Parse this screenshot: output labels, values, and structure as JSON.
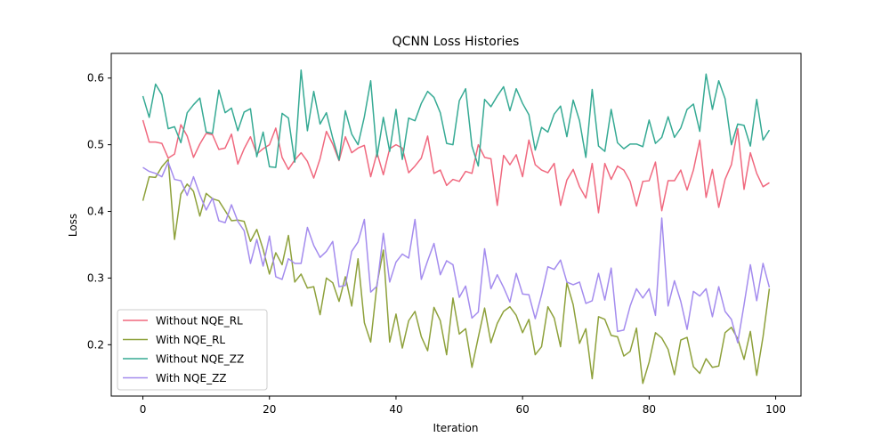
{
  "chart_data": {
    "type": "line",
    "title": "QCNN Loss Histories",
    "xlabel": "Iteration",
    "ylabel": "Loss",
    "xlim": [
      -5,
      104
    ],
    "ylim": [
      0.123,
      0.637
    ],
    "xticks": [
      0,
      20,
      40,
      60,
      80,
      100
    ],
    "yticks": [
      0.2,
      0.3,
      0.4,
      0.5,
      0.6
    ],
    "grid": false,
    "legend_position": "lower-left",
    "series": [
      {
        "name": "Without NQE_RL",
        "color": "#f0697f",
        "values": [
          0.537,
          0.504,
          0.504,
          0.502,
          0.48,
          0.486,
          0.53,
          0.513,
          0.481,
          0.501,
          0.517,
          0.515,
          0.493,
          0.495,
          0.516,
          0.471,
          0.494,
          0.512,
          0.486,
          0.494,
          0.5,
          0.525,
          0.481,
          0.463,
          0.477,
          0.488,
          0.475,
          0.45,
          0.479,
          0.52,
          0.501,
          0.476,
          0.512,
          0.488,
          0.495,
          0.499,
          0.452,
          0.488,
          0.455,
          0.494,
          0.5,
          0.495,
          0.458,
          0.468,
          0.48,
          0.513,
          0.457,
          0.462,
          0.439,
          0.448,
          0.445,
          0.46,
          0.457,
          0.5,
          0.481,
          0.479,
          0.409,
          0.484,
          0.47,
          0.485,
          0.452,
          0.507,
          0.47,
          0.462,
          0.458,
          0.472,
          0.409,
          0.447,
          0.463,
          0.437,
          0.42,
          0.472,
          0.398,
          0.472,
          0.448,
          0.468,
          0.462,
          0.445,
          0.408,
          0.445,
          0.446,
          0.474,
          0.401,
          0.446,
          0.446,
          0.462,
          0.432,
          0.462,
          0.507,
          0.421,
          0.463,
          0.406,
          0.448,
          0.47,
          0.524,
          0.433,
          0.488,
          0.457,
          0.437,
          0.443
        ]
      },
      {
        "name": "With NQE_RL",
        "color": "#8ea13b",
        "values": [
          0.416,
          0.452,
          0.451,
          0.467,
          0.478,
          0.358,
          0.426,
          0.441,
          0.43,
          0.393,
          0.427,
          0.419,
          0.416,
          0.401,
          0.386,
          0.387,
          0.385,
          0.355,
          0.373,
          0.343,
          0.306,
          0.338,
          0.32,
          0.364,
          0.294,
          0.306,
          0.285,
          0.287,
          0.245,
          0.3,
          0.293,
          0.265,
          0.302,
          0.258,
          0.329,
          0.233,
          0.204,
          0.291,
          0.342,
          0.204,
          0.246,
          0.195,
          0.236,
          0.25,
          0.212,
          0.191,
          0.256,
          0.236,
          0.185,
          0.27,
          0.216,
          0.224,
          0.166,
          0.211,
          0.255,
          0.203,
          0.232,
          0.25,
          0.257,
          0.244,
          0.218,
          0.238,
          0.185,
          0.197,
          0.257,
          0.24,
          0.197,
          0.293,
          0.26,
          0.202,
          0.224,
          0.149,
          0.242,
          0.238,
          0.214,
          0.212,
          0.183,
          0.19,
          0.225,
          0.142,
          0.174,
          0.218,
          0.21,
          0.193,
          0.155,
          0.207,
          0.211,
          0.167,
          0.157,
          0.179,
          0.166,
          0.168,
          0.218,
          0.226,
          0.209,
          0.178,
          0.22,
          0.154,
          0.212,
          0.284
        ]
      },
      {
        "name": "Without NQE_ZZ",
        "color": "#36aa94",
        "values": [
          0.573,
          0.541,
          0.591,
          0.575,
          0.524,
          0.527,
          0.503,
          0.548,
          0.56,
          0.57,
          0.519,
          0.517,
          0.582,
          0.548,
          0.555,
          0.521,
          0.549,
          0.554,
          0.482,
          0.519,
          0.467,
          0.466,
          0.547,
          0.54,
          0.474,
          0.612,
          0.521,
          0.58,
          0.531,
          0.548,
          0.51,
          0.477,
          0.551,
          0.516,
          0.5,
          0.542,
          0.596,
          0.482,
          0.541,
          0.49,
          0.553,
          0.478,
          0.54,
          0.536,
          0.562,
          0.58,
          0.571,
          0.548,
          0.502,
          0.5,
          0.566,
          0.584,
          0.498,
          0.468,
          0.568,
          0.557,
          0.573,
          0.587,
          0.551,
          0.584,
          0.562,
          0.545,
          0.492,
          0.526,
          0.519,
          0.546,
          0.558,
          0.512,
          0.567,
          0.536,
          0.481,
          0.583,
          0.498,
          0.49,
          0.553,
          0.503,
          0.494,
          0.501,
          0.501,
          0.497,
          0.537,
          0.502,
          0.511,
          0.542,
          0.511,
          0.525,
          0.553,
          0.561,
          0.52,
          0.606,
          0.553,
          0.596,
          0.569,
          0.5,
          0.531,
          0.529,
          0.498,
          0.568,
          0.507,
          0.522
        ]
      },
      {
        "name": "With NQE_ZZ",
        "color": "#a48cee",
        "values": [
          0.466,
          0.46,
          0.457,
          0.452,
          0.474,
          0.448,
          0.446,
          0.424,
          0.452,
          0.425,
          0.402,
          0.42,
          0.386,
          0.383,
          0.41,
          0.385,
          0.371,
          0.322,
          0.358,
          0.318,
          0.363,
          0.302,
          0.298,
          0.329,
          0.322,
          0.322,
          0.376,
          0.349,
          0.331,
          0.34,
          0.355,
          0.287,
          0.289,
          0.34,
          0.354,
          0.388,
          0.279,
          0.288,
          0.367,
          0.294,
          0.324,
          0.336,
          0.33,
          0.388,
          0.298,
          0.326,
          0.352,
          0.305,
          0.326,
          0.32,
          0.271,
          0.288,
          0.24,
          0.249,
          0.344,
          0.284,
          0.305,
          0.286,
          0.264,
          0.307,
          0.276,
          0.275,
          0.239,
          0.275,
          0.317,
          0.313,
          0.327,
          0.294,
          0.29,
          0.294,
          0.262,
          0.266,
          0.307,
          0.267,
          0.315,
          0.22,
          0.222,
          0.258,
          0.284,
          0.27,
          0.284,
          0.244,
          0.39,
          0.258,
          0.296,
          0.265,
          0.223,
          0.28,
          0.273,
          0.284,
          0.242,
          0.287,
          0.25,
          0.238,
          0.203,
          0.26,
          0.32,
          0.266,
          0.322,
          0.286
        ]
      }
    ]
  }
}
